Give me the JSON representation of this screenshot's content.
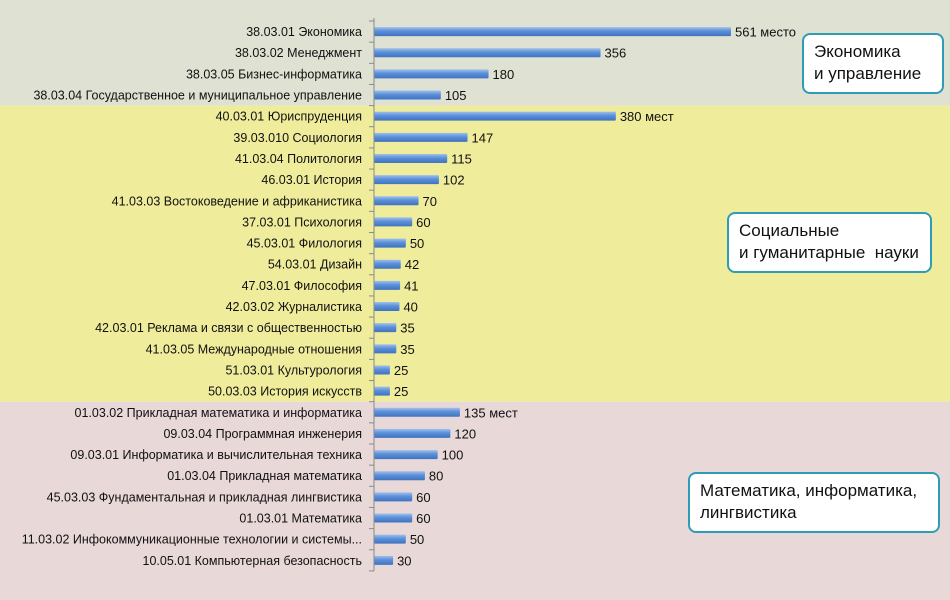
{
  "chart_data": {
    "type": "bar",
    "orientation": "horizontal",
    "categories": [
      "38.03.01 Экономика",
      "38.03.02 Менеджмент",
      "38.03.05 Бизнес-информатика",
      "38.03.04 Государственное и муниципальное управление",
      "40.03.01 Юриспруденция",
      "39.03.010 Социология",
      "41.03.04 Политология",
      "46.03.01 История",
      "41.03.03 Востоковедение и африканистика",
      "37.03.01 Психология",
      "45.03.01 Филология",
      "54.03.01 Дизайн",
      "47.03.01 Философия",
      "42.03.02 Журналистика",
      "42.03.01  Реклама и связи с общественностью",
      "41.03.05 Международные отношения",
      "51.03.01 Культурология",
      "50.03.03 История искусств",
      "01.03.02 Прикладная математика и информатика",
      "09.03.04 Программная инженерия",
      "09.03.01 Информатика и вычислительная техника",
      "01.03.04 Прикладная математика",
      "45.03.03 Фундаментальная и прикладная лингвистика",
      "01.03.01 Математика",
      "11.03.02 Инфокоммуникационные технологии и системы...",
      "10.05.01 Компьютерная безопасность"
    ],
    "values": [
      561,
      356,
      180,
      105,
      380,
      147,
      115,
      102,
      70,
      60,
      50,
      42,
      41,
      40,
      35,
      35,
      25,
      25,
      135,
      120,
      100,
      80,
      60,
      60,
      50,
      30
    ],
    "value_labels": [
      "561 место",
      "356",
      "180",
      "105",
      "380 мест",
      "147",
      "115",
      "102",
      "70",
      "60",
      "50",
      "42",
      "41",
      "40",
      "35",
      "35",
      "25",
      "25",
      "135 мест",
      "120",
      "100",
      "80",
      "60",
      "60",
      "50",
      "30"
    ],
    "xlim": [
      0,
      600
    ],
    "grid": false,
    "bar_color": "#5b8fd6",
    "groups": [
      {
        "lines": [
          "Экономика",
          "и управление"
        ],
        "start": 0,
        "end": 3,
        "background": "#dfe1d3"
      },
      {
        "lines": [
          "Социальные",
          "и гуманитарные  науки"
        ],
        "start": 4,
        "end": 17,
        "background": "#efec9c"
      },
      {
        "lines": [
          "Математика, информатика,",
          "лингвистика"
        ],
        "start": 18,
        "end": 25,
        "background": "#e8d8d8"
      }
    ]
  }
}
